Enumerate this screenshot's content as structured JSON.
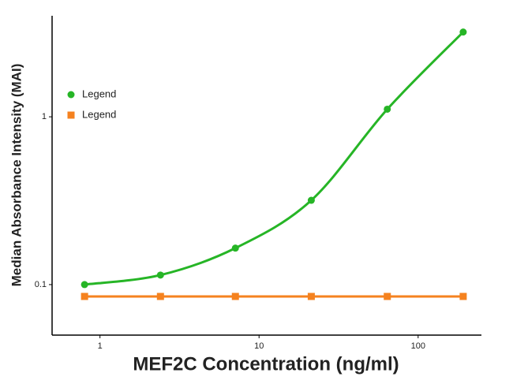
{
  "chart_data": {
    "type": "line",
    "x_label": "MEF2C Concentration (ng/ml)",
    "y_label": "Median Absorbance Intensity (MAI)",
    "x": [
      0.8,
      2.4,
      7.1,
      21.3,
      64,
      192
    ],
    "series": [
      {
        "name": "Legend",
        "color": "#26b526",
        "marker": "circle",
        "values": [
          0.1,
          0.114,
          0.165,
          0.318,
          1.11,
          3.2
        ]
      },
      {
        "name": "Legend",
        "color": "#f5821f",
        "marker": "square",
        "values": [
          0.085,
          0.085,
          0.085,
          0.085,
          0.085,
          0.085
        ]
      }
    ],
    "xlog": true,
    "ylog": true,
    "xlim": [
      0.5,
      250
    ],
    "ylim": [
      0.05,
      4
    ],
    "xticks": [
      1,
      10,
      100
    ],
    "yticks": [
      0.1,
      1
    ],
    "legend": "upper-left"
  }
}
